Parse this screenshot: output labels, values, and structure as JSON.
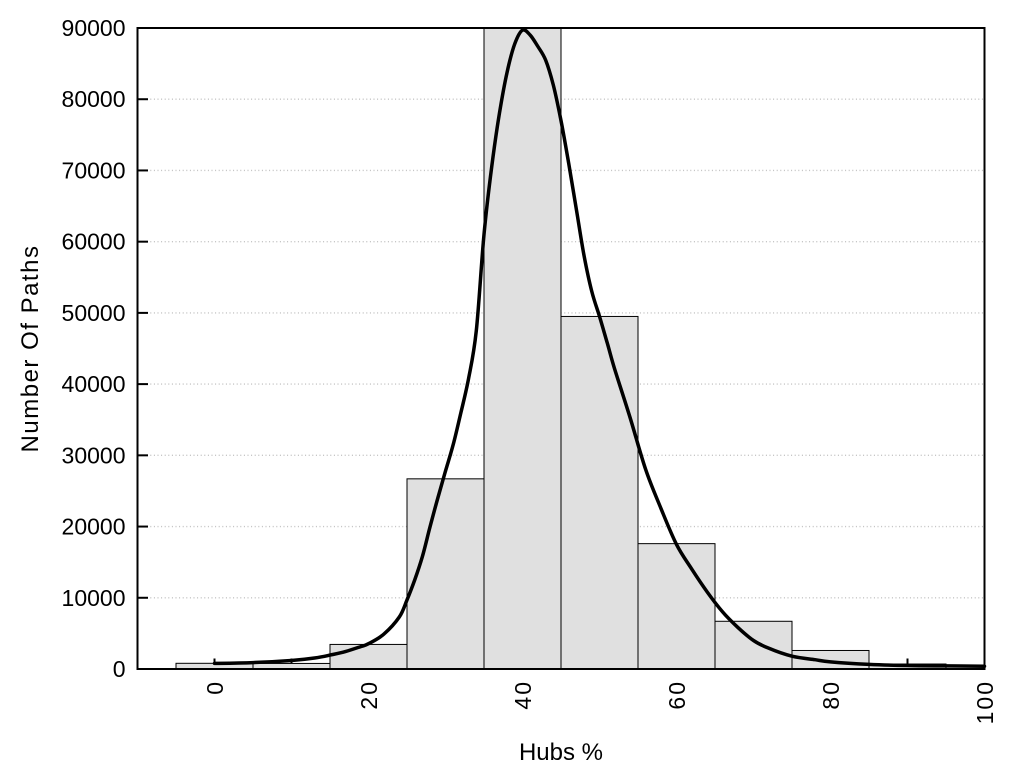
{
  "chart_data": {
    "type": "bar",
    "subtype": "histogram_with_density_curve",
    "title": "",
    "xlabel": "Hubs %",
    "ylabel": "Number Of Paths",
    "xlim": [
      -10,
      100
    ],
    "ylim": [
      0,
      90000
    ],
    "x_tick_step": 10,
    "x_ticks_labeled": [
      0,
      20,
      40,
      60,
      80,
      100
    ],
    "y_ticks": [
      0,
      10000,
      20000,
      30000,
      40000,
      50000,
      60000,
      70000,
      80000,
      90000
    ],
    "grid": {
      "horizontal_dotted": true,
      "vertical": false
    },
    "histogram": {
      "bin_width": 10,
      "bin_centers": [
        0,
        10,
        20,
        30,
        40,
        50,
        60,
        70,
        80,
        90
      ],
      "counts": [
        800,
        780,
        3450,
        26700,
        90000,
        49500,
        17600,
        6700,
        2600,
        700
      ]
    },
    "density_curve": [
      [
        0,
        780
      ],
      [
        5,
        900
      ],
      [
        10,
        1200
      ],
      [
        13,
        1550
      ],
      [
        15,
        1950
      ],
      [
        17,
        2450
      ],
      [
        19,
        3150
      ],
      [
        20,
        3550
      ],
      [
        22,
        4900
      ],
      [
        24,
        7300
      ],
      [
        25,
        9700
      ],
      [
        26,
        12500
      ],
      [
        27,
        15800
      ],
      [
        28,
        20000
      ],
      [
        29,
        24000
      ],
      [
        30,
        27800
      ],
      [
        31,
        31500
      ],
      [
        32,
        36000
      ],
      [
        33,
        40800
      ],
      [
        34,
        47500
      ],
      [
        35,
        61000
      ],
      [
        36,
        70500
      ],
      [
        37,
        78000
      ],
      [
        38,
        83800
      ],
      [
        39,
        87800
      ],
      [
        40,
        89700
      ],
      [
        41,
        89000
      ],
      [
        42,
        87400
      ],
      [
        43,
        85500
      ],
      [
        44,
        82000
      ],
      [
        45,
        77000
      ],
      [
        46,
        71000
      ],
      [
        47,
        64500
      ],
      [
        48,
        58000
      ],
      [
        49,
        53000
      ],
      [
        50,
        49500
      ],
      [
        51,
        45800
      ],
      [
        52,
        42000
      ],
      [
        54,
        35200
      ],
      [
        56,
        28000
      ],
      [
        58,
        22500
      ],
      [
        60,
        17500
      ],
      [
        62,
        14000
      ],
      [
        64,
        10800
      ],
      [
        66,
        8000
      ],
      [
        68,
        5800
      ],
      [
        70,
        4000
      ],
      [
        72,
        2900
      ],
      [
        75,
        1800
      ],
      [
        78,
        1300
      ],
      [
        80,
        1000
      ],
      [
        85,
        640
      ],
      [
        90,
        490
      ],
      [
        95,
        430
      ],
      [
        100,
        400
      ]
    ]
  },
  "colors": {
    "background": "#ffffff",
    "bar_fill": "#e0e0e0",
    "bar_border": "#000000",
    "curve": "#000000",
    "grid": "#c0c0c0",
    "axis": "#000000"
  }
}
